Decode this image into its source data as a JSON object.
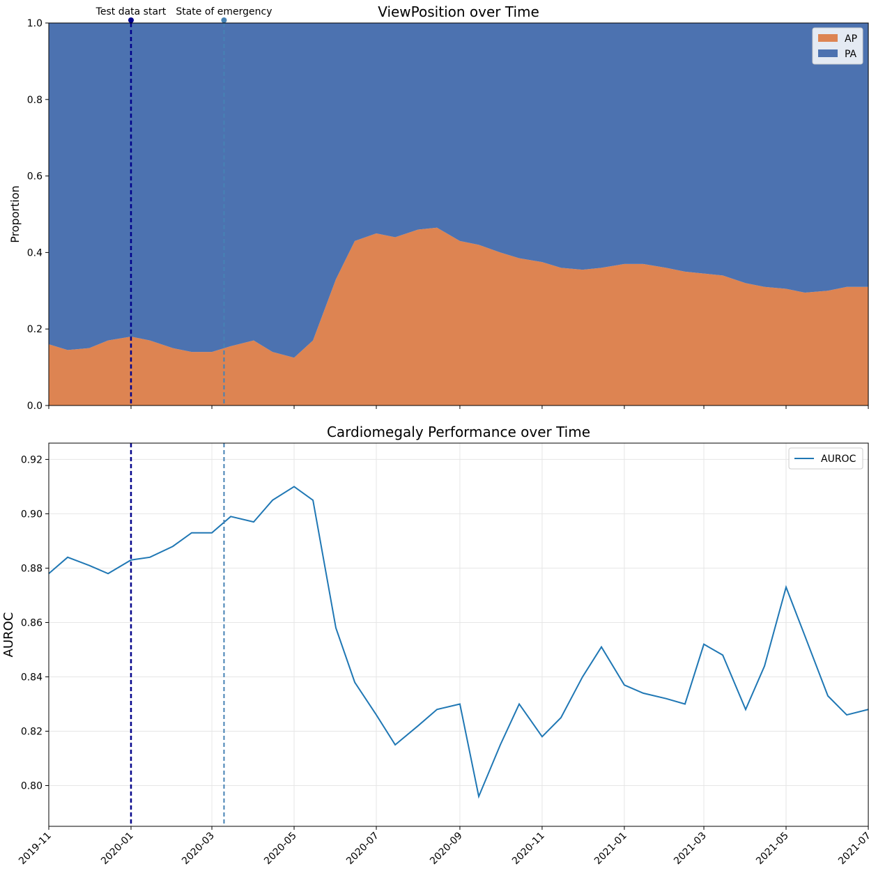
{
  "events": [
    {
      "label": "Test data start",
      "x": "2020-01-01",
      "color": "#00008b"
    },
    {
      "label": "State of emergency",
      "x": "2020-03-10",
      "color": "#4682b4"
    }
  ],
  "chart_data": [
    {
      "type": "area",
      "title": "ViewPosition over Time",
      "ylabel": "Proportion",
      "x": [
        "2019-11-01",
        "2019-11-15",
        "2019-12-01",
        "2019-12-15",
        "2020-01-01",
        "2020-01-15",
        "2020-02-01",
        "2020-02-15",
        "2020-03-01",
        "2020-03-15",
        "2020-04-01",
        "2020-04-15",
        "2020-05-01",
        "2020-05-15",
        "2020-06-01",
        "2020-06-15",
        "2020-07-01",
        "2020-07-15",
        "2020-08-01",
        "2020-08-15",
        "2020-09-01",
        "2020-09-15",
        "2020-10-01",
        "2020-10-15",
        "2020-11-01",
        "2020-11-15",
        "2020-12-01",
        "2020-12-15",
        "2021-01-01",
        "2021-01-15",
        "2021-02-01",
        "2021-02-15",
        "2021-03-01",
        "2021-03-15",
        "2021-04-01",
        "2021-04-15",
        "2021-05-01",
        "2021-05-15",
        "2021-06-01",
        "2021-06-15",
        "2021-07-01"
      ],
      "series": [
        {
          "name": "AP",
          "color": "#dd8452",
          "values": [
            0.16,
            0.145,
            0.15,
            0.17,
            0.18,
            0.17,
            0.15,
            0.14,
            0.14,
            0.155,
            0.17,
            0.14,
            0.125,
            0.17,
            0.33,
            0.43,
            0.45,
            0.44,
            0.46,
            0.465,
            0.43,
            0.42,
            0.4,
            0.385,
            0.375,
            0.36,
            0.355,
            0.36,
            0.37,
            0.37,
            0.36,
            0.35,
            0.345,
            0.34,
            0.32,
            0.31,
            0.305,
            0.295,
            0.3,
            0.31,
            0.31
          ]
        },
        {
          "name": "PA",
          "color": "#4c72b0",
          "values": [
            0.84,
            0.855,
            0.85,
            0.83,
            0.82,
            0.83,
            0.85,
            0.86,
            0.86,
            0.845,
            0.83,
            0.86,
            0.875,
            0.83,
            0.67,
            0.57,
            0.55,
            0.56,
            0.54,
            0.535,
            0.57,
            0.58,
            0.6,
            0.615,
            0.625,
            0.64,
            0.645,
            0.64,
            0.63,
            0.63,
            0.64,
            0.65,
            0.655,
            0.66,
            0.68,
            0.69,
            0.695,
            0.705,
            0.7,
            0.69,
            0.69
          ]
        }
      ],
      "xlim": [
        "2019-11",
        "2021-07"
      ],
      "xticks": [
        "2019-11",
        "2020-01",
        "2020-03",
        "2020-05",
        "2020-07",
        "2020-09",
        "2020-11",
        "2021-01",
        "2021-03",
        "2021-05",
        "2021-07"
      ],
      "ylim": [
        0,
        1
      ],
      "yticks": [
        {
          "value": 0,
          "label": "0.0"
        },
        0.2,
        0.4,
        0.6,
        0.8,
        {
          "value": 1,
          "label": "1.0"
        }
      ],
      "grid": false,
      "legend": "upper right",
      "show_xtick_labels": false
    },
    {
      "type": "line",
      "title": "Cardiomegaly Performance over Time",
      "ylabel": "AUROC",
      "x": [
        "2019-11-01",
        "2019-11-15",
        "2019-12-01",
        "2019-12-15",
        "2020-01-01",
        "2020-01-15",
        "2020-02-01",
        "2020-02-15",
        "2020-03-01",
        "2020-03-15",
        "2020-04-01",
        "2020-04-15",
        "2020-05-01",
        "2020-05-15",
        "2020-06-01",
        "2020-06-15",
        "2020-07-01",
        "2020-07-15",
        "2020-08-01",
        "2020-08-15",
        "2020-09-01",
        "2020-09-15",
        "2020-10-01",
        "2020-10-15",
        "2020-11-01",
        "2020-11-15",
        "2020-12-01",
        "2020-12-15",
        "2021-01-01",
        "2021-01-15",
        "2021-02-01",
        "2021-02-15",
        "2021-03-01",
        "2021-03-15",
        "2021-04-01",
        "2021-04-15",
        "2021-05-01",
        "2021-05-15",
        "2021-06-01",
        "2021-06-15",
        "2021-07-01"
      ],
      "series": [
        {
          "name": "AUROC",
          "color": "#1f77b4",
          "values": [
            0.878,
            0.884,
            0.881,
            0.878,
            0.883,
            0.884,
            0.888,
            0.893,
            0.893,
            0.899,
            0.897,
            0.905,
            0.91,
            0.905,
            0.858,
            0.838,
            0.826,
            0.815,
            0.822,
            0.828,
            0.83,
            0.796,
            0.815,
            0.83,
            0.818,
            0.825,
            0.84,
            0.851,
            0.837,
            0.834,
            0.832,
            0.83,
            0.852,
            0.848,
            0.828,
            0.844,
            0.873,
            0.855,
            0.833,
            0.826,
            0.828
          ]
        }
      ],
      "xlim": [
        "2019-11",
        "2021-07"
      ],
      "xticks": [
        "2019-11",
        "2020-01",
        "2020-03",
        "2020-05",
        "2020-07",
        "2020-09",
        "2020-11",
        "2021-01",
        "2021-03",
        "2021-05",
        "2021-07"
      ],
      "ylim": [
        0.785,
        0.926
      ],
      "yticks": [
        {
          "value": 0.8,
          "label": "0.80"
        },
        0.82,
        0.84,
        0.86,
        0.88,
        {
          "value": 0.9,
          "label": "0.90"
        },
        0.92
      ],
      "grid": true,
      "legend": "upper right",
      "show_xtick_labels": true
    }
  ]
}
